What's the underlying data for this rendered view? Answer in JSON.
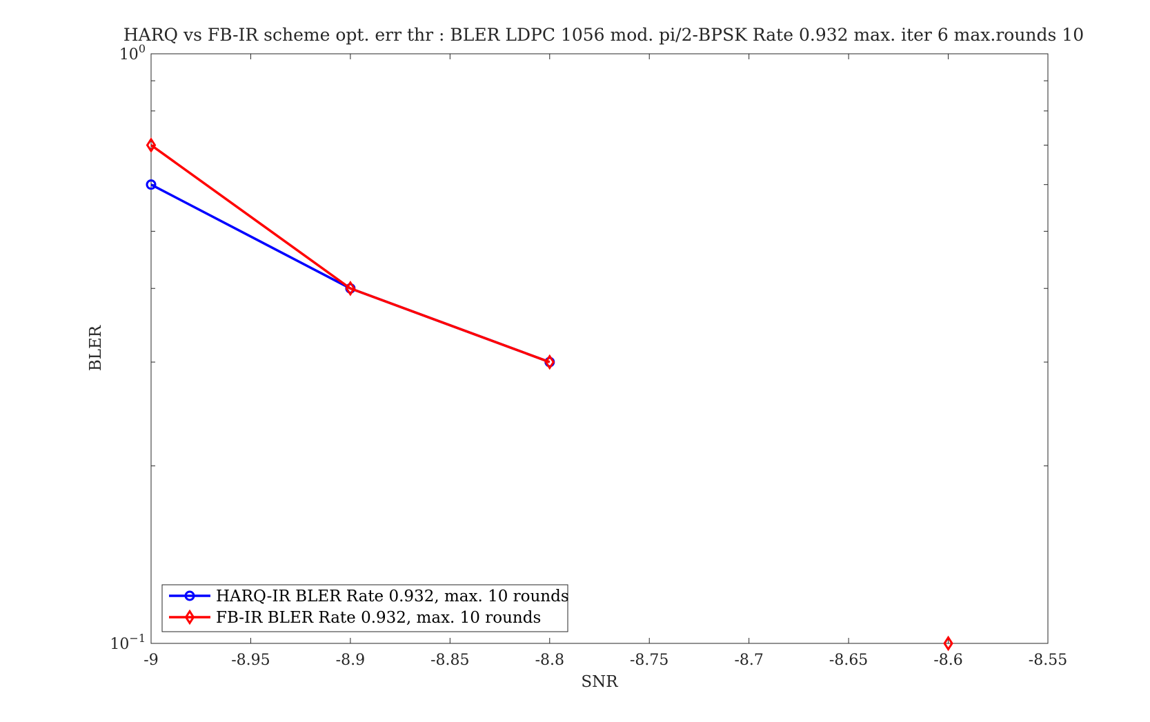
{
  "chart_data": {
    "type": "line",
    "title": "HARQ vs FB-IR scheme opt. err thr : BLER LDPC 1056 mod. pi/2-BPSK Rate 0.932 max. iter 6 max.rounds 10",
    "xlabel": "SNR",
    "ylabel": "BLER",
    "xlim": [
      -9,
      -8.55
    ],
    "ylim": [
      0.1,
      1
    ],
    "yscale": "log",
    "x_ticks": [
      "-9",
      "-8.95",
      "-8.9",
      "-8.85",
      "-8.8",
      "-8.75",
      "-8.7",
      "-8.65",
      "-8.6",
      "-8.55"
    ],
    "y_ticks": [
      {
        "base": "10",
        "exp": "0"
      },
      {
        "base": "10",
        "exp": "−1"
      }
    ],
    "grid": false,
    "legend_position": "bottom-left",
    "series": [
      {
        "name": "HARQ-IR BLER Rate 0.932, max. 10 rounds",
        "color": "#0000ff",
        "marker": "circle",
        "x": [
          -9,
          -8.9,
          -8.8
        ],
        "y": [
          0.6,
          0.4,
          0.3
        ]
      },
      {
        "name": "FB-IR BLER Rate 0.932, max. 10 rounds",
        "color": "#ff0000",
        "marker": "diamond",
        "x": [
          -9,
          -8.9,
          -8.8,
          -8.6
        ],
        "y": [
          0.7,
          0.4,
          0.3,
          0.1
        ]
      }
    ]
  }
}
